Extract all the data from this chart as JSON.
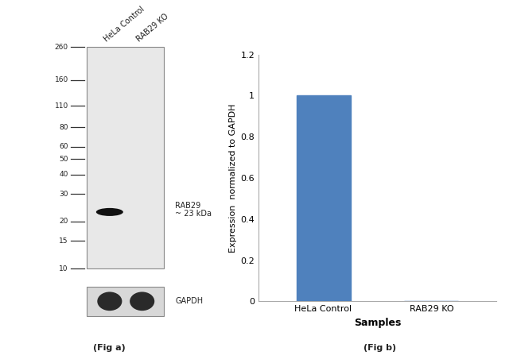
{
  "background_color": "#ffffff",
  "fig_width": 6.5,
  "fig_height": 4.57,
  "fig_dpi": 100,
  "fig_a_caption": "(Fig a)",
  "fig_b_caption": "(Fig b)",
  "wb_panel": {
    "mw_labels": [
      "260",
      "160",
      "110",
      "80",
      "60",
      "50",
      "40",
      "30",
      "20",
      "15",
      "10"
    ],
    "mw_values": [
      260,
      160,
      110,
      80,
      60,
      50,
      40,
      30,
      20,
      15,
      10
    ],
    "lane_labels": [
      "HeLa Control",
      "RAB29 KO"
    ],
    "band_annotation_line1": "RAB29",
    "band_annotation_line2": "~ 23 kDa",
    "gapdh_label": "GAPDH",
    "wb_bg": "#e8e8e8",
    "band_color": "#1a1a1a",
    "band_mw": 23,
    "gapdh_bg": "#d0d0d0"
  },
  "bar_panel": {
    "categories": [
      "HeLa Control",
      "RAB29 KO"
    ],
    "values": [
      1.0,
      0.0
    ],
    "bar_color": "#4f81bd",
    "bar_width": 0.5,
    "ylim": [
      0,
      1.2
    ],
    "yticks": [
      0,
      0.2,
      0.4,
      0.6,
      0.8,
      1.0,
      1.2
    ],
    "ylabel": "Expression  normalized to GAPDH",
    "xlabel": "Samples",
    "ylabel_fontsize": 8,
    "xlabel_fontsize": 9,
    "tick_fontsize": 8,
    "xtick_fontsize": 8
  }
}
